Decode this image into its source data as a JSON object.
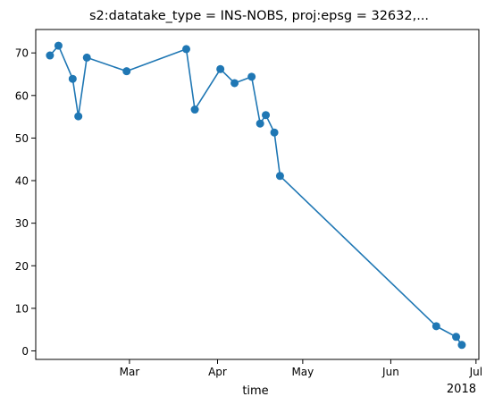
{
  "chart_data": {
    "type": "line",
    "title": "s2:datatake_type = INS-NOBS, proj:epsg = 32632,...",
    "xlabel": "time",
    "ylabel": "",
    "x_axis_type": "date",
    "year_label": "2018",
    "xlim": [
      "2018-01-27",
      "2018-07-02"
    ],
    "ylim": [
      -2,
      75.5
    ],
    "x_ticks": [
      {
        "date": "2018-03-01",
        "label": "Mar"
      },
      {
        "date": "2018-04-01",
        "label": "Apr"
      },
      {
        "date": "2018-05-01",
        "label": "May"
      },
      {
        "date": "2018-06-01",
        "label": "Jun"
      },
      {
        "date": "2018-07-01",
        "label": "Jul"
      }
    ],
    "y_ticks": [
      0,
      10,
      20,
      30,
      40,
      50,
      60,
      70
    ],
    "grid": false,
    "legend": "none",
    "series": [
      {
        "color": "#1f77b4",
        "marker": "circle",
        "points": [
          {
            "x": "2018-02-01",
            "y": 69.4
          },
          {
            "x": "2018-02-04",
            "y": 71.7
          },
          {
            "x": "2018-02-09",
            "y": 63.9
          },
          {
            "x": "2018-02-11",
            "y": 55.1
          },
          {
            "x": "2018-02-14",
            "y": 68.9
          },
          {
            "x": "2018-02-28",
            "y": 65.7
          },
          {
            "x": "2018-03-21",
            "y": 70.9
          },
          {
            "x": "2018-03-24",
            "y": 56.7
          },
          {
            "x": "2018-04-02",
            "y": 66.2
          },
          {
            "x": "2018-04-07",
            "y": 62.9
          },
          {
            "x": "2018-04-13",
            "y": 64.4
          },
          {
            "x": "2018-04-16",
            "y": 53.4
          },
          {
            "x": "2018-04-18",
            "y": 55.4
          },
          {
            "x": "2018-04-21",
            "y": 51.3
          },
          {
            "x": "2018-04-23",
            "y": 41.1
          },
          {
            "x": "2018-06-17",
            "y": 5.8
          },
          {
            "x": "2018-06-24",
            "y": 3.3
          },
          {
            "x": "2018-06-26",
            "y": 1.4
          }
        ]
      }
    ]
  }
}
